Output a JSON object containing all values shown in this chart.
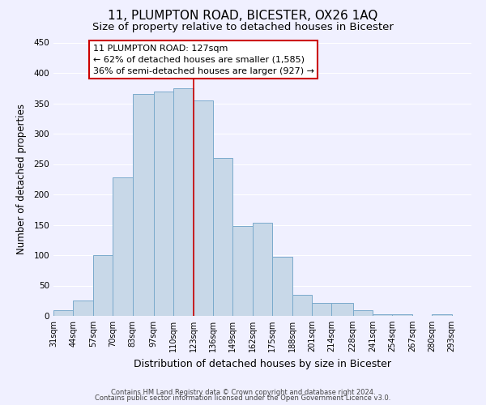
{
  "title": "11, PLUMPTON ROAD, BICESTER, OX26 1AQ",
  "subtitle": "Size of property relative to detached houses in Bicester",
  "xlabel": "Distribution of detached houses by size in Bicester",
  "ylabel": "Number of detached properties",
  "bin_edges": [
    31,
    44,
    57,
    70,
    83,
    97,
    110,
    123,
    136,
    149,
    162,
    175,
    188,
    201,
    214,
    228,
    241,
    254,
    267,
    280,
    293
  ],
  "bar_heights": [
    10,
    25,
    100,
    228,
    365,
    370,
    375,
    355,
    260,
    148,
    153,
    97,
    35,
    22,
    22,
    10,
    3,
    3,
    0,
    3
  ],
  "bar_color": "#c8d8e8",
  "bar_edgecolor": "#7aaacc",
  "bar_linewidth": 0.7,
  "vline_x": 123,
  "vline_color": "#cc0000",
  "vline_linewidth": 1.2,
  "ylim": [
    0,
    450
  ],
  "yticks": [
    0,
    50,
    100,
    150,
    200,
    250,
    300,
    350,
    400,
    450
  ],
  "annotation_title": "11 PLUMPTON ROAD: 127sqm",
  "annotation_line1": "← 62% of detached houses are smaller (1,585)",
  "annotation_line2": "36% of semi-detached houses are larger (927) →",
  "annotation_box_edgecolor": "#cc0000",
  "annotation_box_facecolor": "#ffffff",
  "footer_line1": "Contains HM Land Registry data © Crown copyright and database right 2024.",
  "footer_line2": "Contains public sector information licensed under the Open Government Licence v3.0.",
  "background_color": "#f0f0ff",
  "grid_color": "#ffffff",
  "title_fontsize": 11,
  "subtitle_fontsize": 9.5,
  "xlabel_fontsize": 9,
  "ylabel_fontsize": 8.5,
  "tick_fontsize": 7,
  "footer_fontsize": 6,
  "annotation_fontsize": 8
}
